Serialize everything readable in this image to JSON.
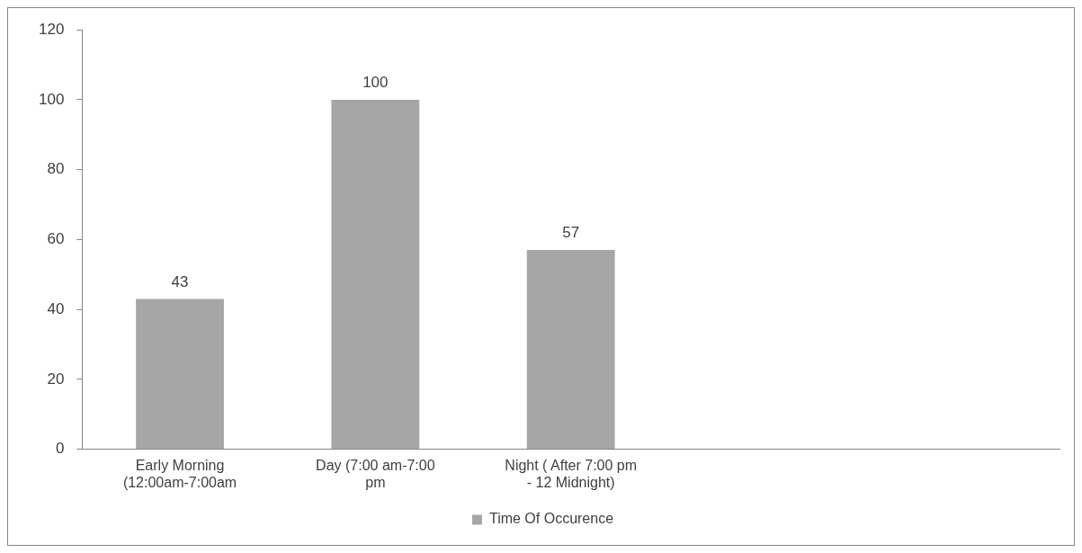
{
  "chart_data": {
    "type": "bar",
    "categories": [
      "Early Morning (12:00am-7:00am",
      "Day (7:00 am-7:00 pm",
      "Night ( After 7:00 pm - 12 Midnight)",
      null,
      null
    ],
    "series": [
      {
        "name": "Time Of Occurence",
        "color": "#a6a6a6",
        "values": [
          43,
          100,
          57,
          null,
          null
        ]
      }
    ],
    "ylim": [
      0,
      120
    ],
    "yticks": [
      0,
      20,
      40,
      60,
      80,
      100,
      120
    ],
    "grid": false,
    "legend": "bottom",
    "data_labels": true
  }
}
